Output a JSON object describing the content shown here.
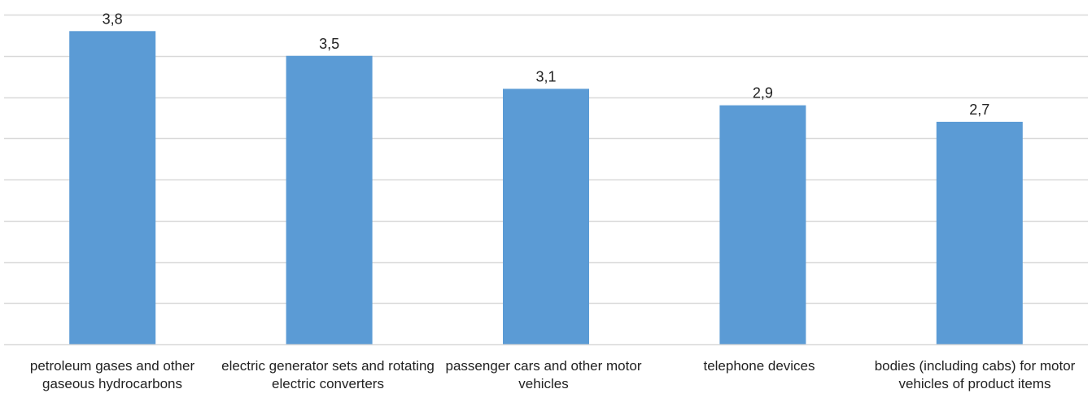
{
  "chart_data": {
    "type": "bar",
    "title": "",
    "xlabel": "",
    "ylabel": "",
    "categories": [
      "petroleum gases and other gaseous hydrocarbons",
      "electric generator sets and rotating electric converters",
      "passenger cars and other motor vehicles",
      "telephone devices",
      "bodies (including cabs) for motor vehicles of product items"
    ],
    "values": [
      3.8,
      3.5,
      3.1,
      2.9,
      2.7
    ],
    "data_labels": [
      "3,8",
      "3,5",
      "3,1",
      "2,9",
      "2,7"
    ],
    "ylim": [
      0,
      4
    ],
    "y_gridline_step": 0.5,
    "grid": true,
    "legend": "none",
    "bar_color": "#5b9bd5",
    "grid_color": "#d9d9d9"
  }
}
